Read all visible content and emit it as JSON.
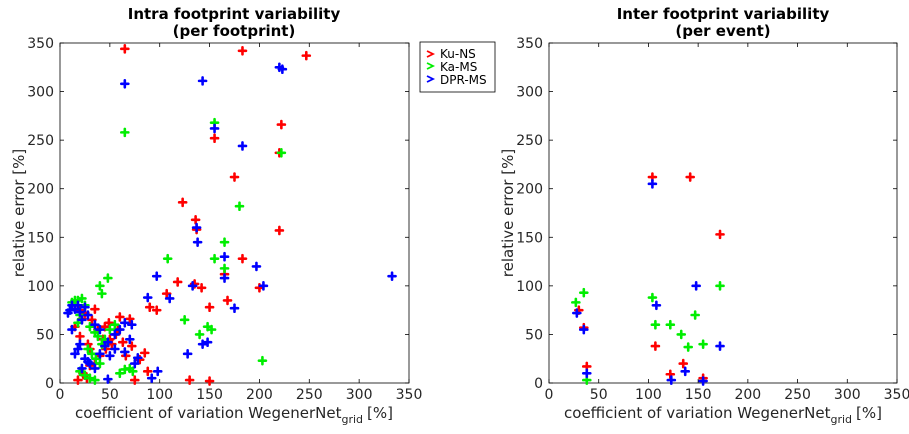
{
  "colors": {
    "Ku-NS": "#ff0000",
    "Ka-MS": "#00ee00",
    "DPR-MS": "#0000ff"
  },
  "legend": {
    "placement": "top-right of left panel",
    "entries": [
      "Ku-NS",
      "Ka-MS",
      "DPR-MS"
    ]
  },
  "chart_data": [
    {
      "type": "scatter",
      "title": "Intra footprint variability",
      "subtitle": "(per footprint)",
      "xlabel": "coefficient of variation WegenerNet",
      "xlabel_subscript": "grid",
      "xlabel_unit": "[%]",
      "ylabel": "relative error [%]",
      "xlim": [
        0,
        350
      ],
      "ylim": [
        0,
        350
      ],
      "xticks": [
        0,
        50,
        100,
        150,
        200,
        250,
        300,
        350
      ],
      "yticks": [
        0,
        50,
        100,
        150,
        200,
        250,
        300,
        350
      ],
      "grid": false,
      "marker": "cross",
      "series": [
        {
          "name": "Ku-NS",
          "color": "#ff0000",
          "points": [
            [
              65,
              344
            ],
            [
              183,
              342
            ],
            [
              247,
              337
            ],
            [
              222,
              266
            ],
            [
              155,
              252
            ],
            [
              220,
              237
            ],
            [
              175,
              212
            ],
            [
              123,
              186
            ],
            [
              136,
              168
            ],
            [
              183,
              128
            ],
            [
              137,
              158
            ],
            [
              220,
              157
            ],
            [
              165,
              112
            ],
            [
              168,
              85
            ],
            [
              200,
              98
            ],
            [
              118,
              104
            ],
            [
              107,
              92
            ],
            [
              90,
              78
            ],
            [
              97,
              75
            ],
            [
              135,
              102
            ],
            [
              142,
              98
            ],
            [
              150,
              78
            ],
            [
              130,
              3
            ],
            [
              150,
              2
            ],
            [
              15,
              58
            ],
            [
              20,
              48
            ],
            [
              22,
              66
            ],
            [
              25,
              72
            ],
            [
              28,
              40
            ],
            [
              30,
              35
            ],
            [
              32,
              65
            ],
            [
              35,
              76
            ],
            [
              38,
              55
            ],
            [
              40,
              28
            ],
            [
              43,
              45
            ],
            [
              46,
              35
            ],
            [
              49,
              62
            ],
            [
              52,
              40
            ],
            [
              56,
              50
            ],
            [
              60,
              68
            ],
            [
              63,
              42
            ],
            [
              66,
              28
            ],
            [
              70,
              66
            ],
            [
              72,
              38
            ],
            [
              75,
              3
            ],
            [
              80,
              24
            ],
            [
              85,
              31
            ],
            [
              88,
              12
            ],
            [
              23,
              10
            ],
            [
              27,
              5
            ],
            [
              18,
              3
            ],
            [
              30,
              18
            ],
            [
              35,
              20
            ],
            [
              50,
              45
            ],
            [
              58,
              55
            ],
            [
              45,
              58
            ],
            [
              15,
              80
            ],
            [
              20,
              75
            ]
          ]
        },
        {
          "name": "Ka-MS",
          "color": "#00ee00",
          "points": [
            [
              155,
              268
            ],
            [
              65,
              258
            ],
            [
              222,
              237
            ],
            [
              180,
              182
            ],
            [
              165,
              145
            ],
            [
              155,
              128
            ],
            [
              108,
              128
            ],
            [
              165,
              118
            ],
            [
              125,
              65
            ],
            [
              140,
              50
            ],
            [
              148,
              58
            ],
            [
              152,
              55
            ],
            [
              203,
              23
            ],
            [
              48,
              108
            ],
            [
              40,
              100
            ],
            [
              42,
              92
            ],
            [
              15,
              85
            ],
            [
              12,
              83
            ],
            [
              18,
              85
            ],
            [
              22,
              87
            ],
            [
              25,
              80
            ],
            [
              20,
              70
            ],
            [
              18,
              62
            ],
            [
              30,
              58
            ],
            [
              35,
              52
            ],
            [
              38,
              48
            ],
            [
              42,
              40
            ],
            [
              28,
              35
            ],
            [
              32,
              30
            ],
            [
              36,
              25
            ],
            [
              40,
              20
            ],
            [
              20,
              12
            ],
            [
              25,
              8
            ],
            [
              30,
              5
            ],
            [
              35,
              3
            ],
            [
              60,
              10
            ],
            [
              65,
              14
            ],
            [
              70,
              15
            ],
            [
              73,
              12
            ],
            [
              55,
              60
            ],
            [
              50,
              55
            ],
            [
              45,
              45
            ]
          ]
        },
        {
          "name": "DPR-MS",
          "color": "#0000ff",
          "points": [
            [
              65,
              308
            ],
            [
              143,
              311
            ],
            [
              220,
              325
            ],
            [
              223,
              323
            ],
            [
              155,
              262
            ],
            [
              183,
              244
            ],
            [
              137,
              160
            ],
            [
              138,
              145
            ],
            [
              165,
              130
            ],
            [
              197,
              120
            ],
            [
              204,
              100
            ],
            [
              175,
              77
            ],
            [
              110,
              87
            ],
            [
              97,
              110
            ],
            [
              88,
              88
            ],
            [
              165,
              108
            ],
            [
              133,
              100
            ],
            [
              128,
              30
            ],
            [
              148,
              42
            ],
            [
              143,
              40
            ],
            [
              333,
              110
            ],
            [
              8,
              72
            ],
            [
              10,
              75
            ],
            [
              12,
              80
            ],
            [
              15,
              76
            ],
            [
              18,
              80
            ],
            [
              20,
              73
            ],
            [
              22,
              65
            ],
            [
              25,
              78
            ],
            [
              28,
              70
            ],
            [
              12,
              55
            ],
            [
              18,
              35
            ],
            [
              20,
              40
            ],
            [
              25,
              25
            ],
            [
              30,
              20
            ],
            [
              35,
              15
            ],
            [
              40,
              30
            ],
            [
              45,
              38
            ],
            [
              48,
              42
            ],
            [
              50,
              28
            ],
            [
              55,
              35
            ],
            [
              60,
              55
            ],
            [
              65,
              32
            ],
            [
              70,
              45
            ],
            [
              72,
              60
            ],
            [
              75,
              20
            ],
            [
              78,
              26
            ],
            [
              92,
              5
            ],
            [
              98,
              12
            ],
            [
              48,
              4
            ],
            [
              22,
              15
            ],
            [
              28,
              22
            ],
            [
              15,
              30
            ],
            [
              65,
              62
            ],
            [
              55,
              50
            ],
            [
              35,
              60
            ],
            [
              40,
              55
            ]
          ]
        }
      ]
    },
    {
      "type": "scatter",
      "title": "Inter footprint variability",
      "subtitle": "(per event)",
      "xlabel": "coefficient of variation WegenerNet",
      "xlabel_subscript": "grid",
      "xlabel_unit": "[%]",
      "ylabel": "relative error [%]",
      "xlim": [
        0,
        350
      ],
      "ylim": [
        0,
        350
      ],
      "xticks": [
        0,
        50,
        100,
        150,
        200,
        250,
        300,
        350
      ],
      "yticks": [
        0,
        50,
        100,
        150,
        200,
        250,
        300,
        350
      ],
      "grid": false,
      "marker": "cross",
      "series": [
        {
          "name": "Ku-NS",
          "color": "#ff0000",
          "points": [
            [
              104,
              212
            ],
            [
              142,
              212
            ],
            [
              172,
              153
            ],
            [
              30,
              75
            ],
            [
              35,
              57
            ],
            [
              38,
              17
            ],
            [
              107,
              38
            ],
            [
              122,
              9
            ],
            [
              135,
              20
            ],
            [
              155,
              5
            ]
          ]
        },
        {
          "name": "Ka-MS",
          "color": "#00ee00",
          "points": [
            [
              27,
              83
            ],
            [
              35,
              93
            ],
            [
              104,
              88
            ],
            [
              107,
              60
            ],
            [
              122,
              60
            ],
            [
              133,
              50
            ],
            [
              140,
              37
            ],
            [
              147,
              70
            ],
            [
              172,
              100
            ],
            [
              155,
              40
            ],
            [
              38,
              3
            ]
          ]
        },
        {
          "name": "DPR-MS",
          "color": "#0000ff",
          "points": [
            [
              104,
              205
            ],
            [
              28,
              72
            ],
            [
              35,
              55
            ],
            [
              108,
              80
            ],
            [
              123,
              3
            ],
            [
              137,
              12
            ],
            [
              148,
              100
            ],
            [
              172,
              38
            ],
            [
              155,
              2
            ],
            [
              38,
              10
            ]
          ]
        }
      ]
    }
  ]
}
